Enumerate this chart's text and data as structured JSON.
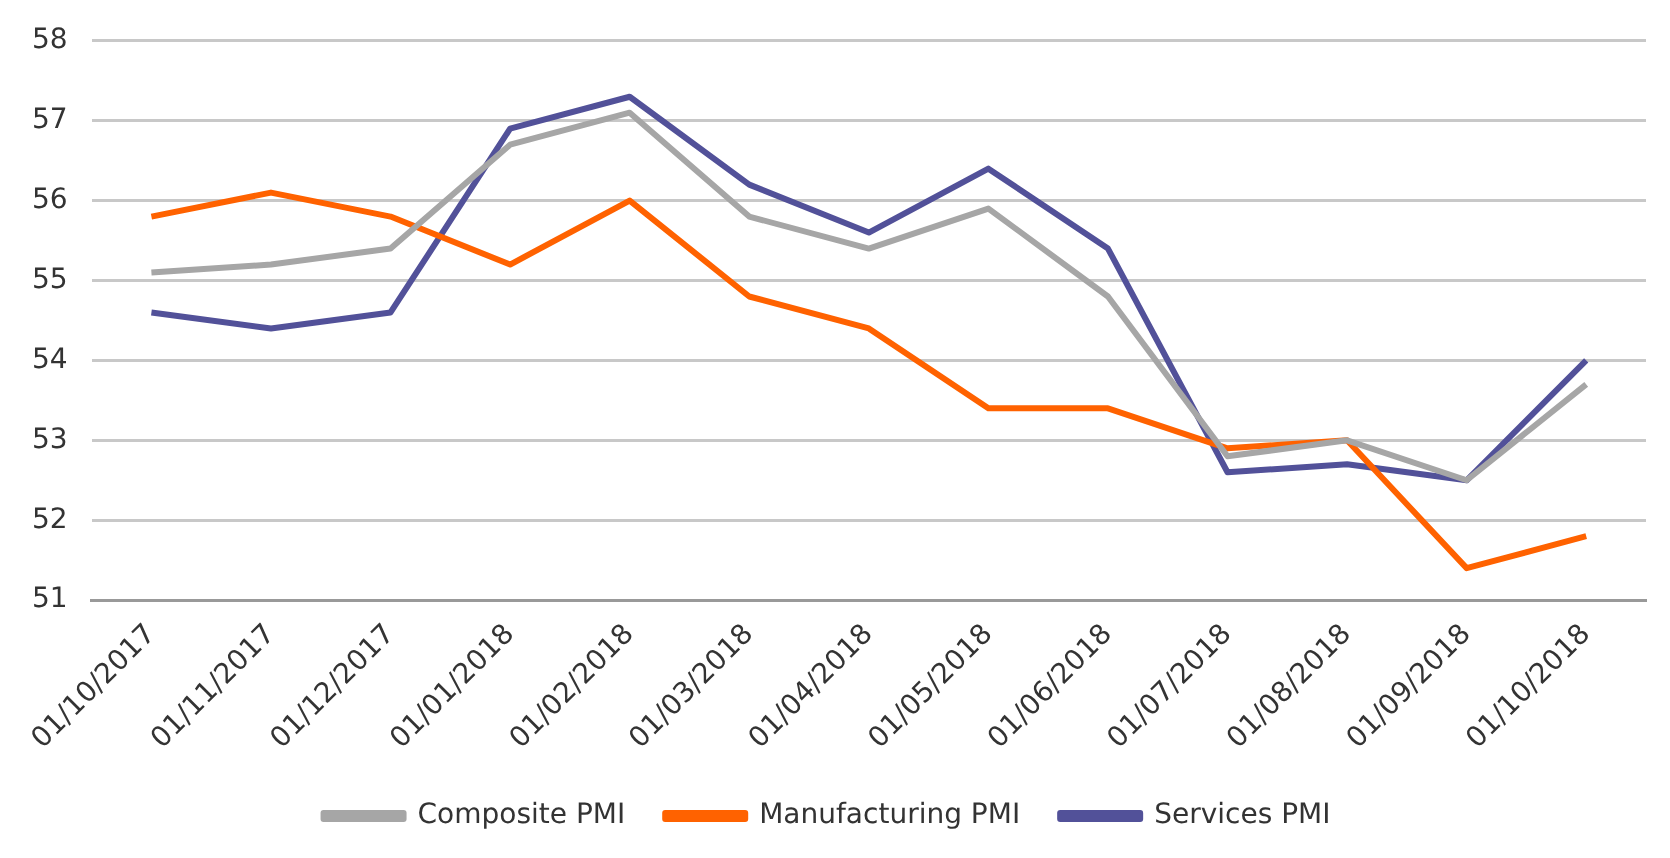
{
  "chart_data": {
    "type": "line",
    "categories": [
      "01/10/2017",
      "01/11/2017",
      "01/12/2017",
      "01/01/2018",
      "01/02/2018",
      "01/03/2018",
      "01/04/2018",
      "01/05/2018",
      "01/06/2018",
      "01/07/2018",
      "01/08/2018",
      "01/09/2018",
      "01/10/2018"
    ],
    "series": [
      {
        "name": "Composite PMI",
        "color": "#a6a6a6",
        "values": [
          55.1,
          55.2,
          55.4,
          56.7,
          57.1,
          55.8,
          55.4,
          55.9,
          54.8,
          52.8,
          53.0,
          52.5,
          53.7
        ]
      },
      {
        "name": "Manufacturing PMI",
        "color": "#ff6200",
        "values": [
          55.8,
          56.1,
          55.8,
          55.2,
          56.0,
          54.8,
          54.4,
          53.4,
          53.4,
          52.9,
          53.0,
          51.4,
          51.8
        ]
      },
      {
        "name": "Services PMI",
        "color": "#525199",
        "values": [
          54.6,
          54.4,
          54.6,
          56.9,
          57.3,
          56.2,
          55.6,
          56.4,
          55.4,
          52.6,
          52.7,
          52.5,
          54.0
        ]
      }
    ],
    "ylim": [
      51,
      58
    ],
    "yticks": [
      51,
      52,
      53,
      54,
      55,
      56,
      57,
      58
    ],
    "grid": "y",
    "legend": "bottom",
    "marker": "none",
    "line_style": "solid"
  }
}
